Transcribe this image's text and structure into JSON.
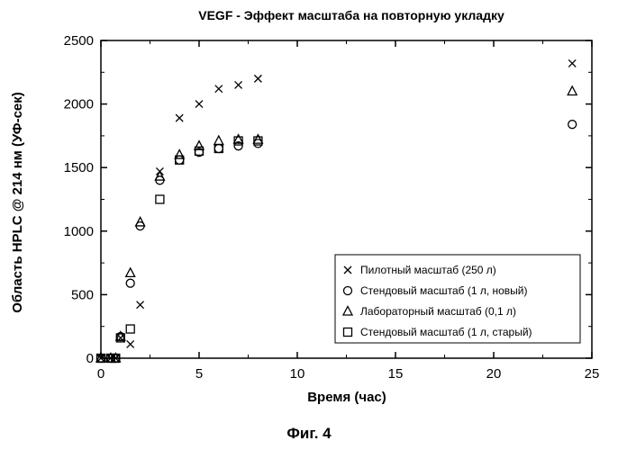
{
  "chart_data": {
    "type": "scatter",
    "title": "VEGF - Эффект масштаба на повторную укладку",
    "xlabel": "Время (час)",
    "ylabel": "Область HPLC @ 214 нм (УФ-сек)",
    "xlim": [
      0,
      25
    ],
    "ylim": [
      0,
      2500
    ],
    "xticks": [
      0,
      5,
      10,
      15,
      20,
      25
    ],
    "yticks": [
      0,
      500,
      1000,
      1500,
      2000,
      2500
    ],
    "grid": false,
    "legend_position": "bottom-right",
    "series": [
      {
        "name": "Пилотный масштаб (250 л)",
        "marker": "x",
        "x": [
          0,
          0.5,
          0.75,
          1,
          1.5,
          2,
          3,
          4,
          5,
          6,
          7,
          8,
          24
        ],
        "y": [
          0,
          0,
          0,
          160,
          110,
          420,
          1470,
          1890,
          2000,
          2120,
          2150,
          2200,
          2320
        ]
      },
      {
        "name": "Стендовый масштаб (1 л, новый)",
        "marker": "circle",
        "x": [
          0,
          0.5,
          0.75,
          1,
          1.5,
          2,
          3,
          4,
          5,
          6,
          7,
          8,
          24
        ],
        "y": [
          0,
          0,
          0,
          170,
          590,
          1040,
          1400,
          1560,
          1620,
          1650,
          1670,
          1690,
          1840
        ]
      },
      {
        "name": "Лабораторный масштаб (0,1 л)",
        "marker": "triangle",
        "x": [
          0,
          0.5,
          0.75,
          1,
          1.5,
          2,
          3,
          4,
          5,
          6,
          7,
          8,
          24
        ],
        "y": [
          0,
          0,
          0,
          170,
          670,
          1070,
          1430,
          1600,
          1670,
          1710,
          1720,
          1720,
          2100
        ]
      },
      {
        "name": "Стендовый масштаб (1 л, старый)",
        "marker": "square",
        "x": [
          0,
          0.5,
          0.75,
          1,
          1.5,
          3,
          4,
          5,
          6,
          7,
          8
        ],
        "y": [
          0,
          0,
          0,
          160,
          230,
          1250,
          1560,
          1630,
          1650,
          1710,
          1710
        ]
      }
    ]
  },
  "caption": "Фиг. 4"
}
